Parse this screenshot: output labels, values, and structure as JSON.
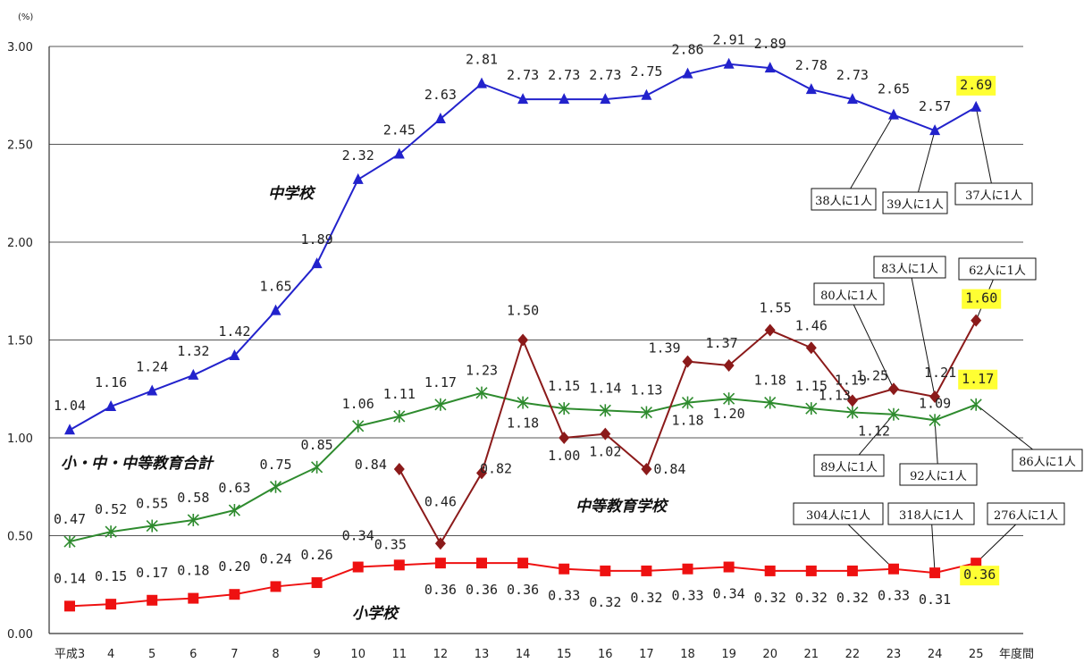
{
  "chart_data": {
    "type": "line",
    "y_unit": "(%)",
    "x_suffix": "年度間",
    "categories": [
      "平成3",
      "4",
      "5",
      "6",
      "7",
      "8",
      "9",
      "10",
      "11",
      "12",
      "13",
      "14",
      "15",
      "16",
      "17",
      "18",
      "19",
      "20",
      "21",
      "22",
      "23",
      "24",
      "25"
    ],
    "ylim": [
      0,
      3.0
    ],
    "yticks": [
      "0.00",
      "0.50",
      "1.00",
      "1.50",
      "2.00",
      "2.50",
      "3.00"
    ],
    "grid": true,
    "series": [
      {
        "name": "中学校",
        "color": "#2222cc",
        "marker": "triangle",
        "values": [
          1.04,
          1.16,
          1.24,
          1.32,
          1.42,
          1.65,
          1.89,
          2.32,
          2.45,
          2.63,
          2.81,
          2.73,
          2.73,
          2.73,
          2.75,
          2.86,
          2.91,
          2.89,
          2.78,
          2.73,
          2.65,
          2.57,
          2.69
        ],
        "labels": [
          "1.04",
          "1.16",
          "1.24",
          "1.32",
          "1.42",
          "1.65",
          "1.89",
          "2.32",
          "2.45",
          "2.63",
          "2.81",
          "2.73",
          "2.73",
          "2.73",
          "2.75",
          "2.86",
          "2.91",
          "2.89",
          "2.78",
          "2.73",
          "2.65",
          "2.57",
          "2.69"
        ]
      },
      {
        "name": "小・中・中等教育合計",
        "color": "#2e8b2e",
        "marker": "asterisk",
        "values": [
          0.47,
          0.52,
          0.55,
          0.58,
          0.63,
          0.75,
          0.85,
          1.06,
          1.11,
          1.17,
          1.23,
          1.18,
          1.15,
          1.14,
          1.13,
          1.18,
          1.2,
          1.18,
          1.15,
          1.13,
          1.12,
          1.09,
          1.17
        ],
        "labels": [
          "0.47",
          "0.52",
          "0.55",
          "0.58",
          "0.63",
          "0.75",
          "0.85",
          "1.06",
          "1.11",
          "1.17",
          "1.23",
          "1.18",
          "1.15",
          "1.14",
          "1.13",
          "1.18",
          "1.20",
          "1.18",
          "1.15",
          "1.13",
          "1.12",
          "1.09",
          "1.17"
        ]
      },
      {
        "name": "中等教育学校",
        "color": "#8b1a1a",
        "marker": "diamond",
        "values": [
          null,
          null,
          null,
          null,
          null,
          null,
          null,
          null,
          0.84,
          0.46,
          0.82,
          1.5,
          1.0,
          1.02,
          0.84,
          1.39,
          1.37,
          1.55,
          1.46,
          1.19,
          1.25,
          1.21,
          1.6
        ],
        "labels": [
          null,
          null,
          null,
          null,
          null,
          null,
          null,
          null,
          "0.84",
          "0.46",
          "0.82",
          "1.50",
          "1.00",
          "1.02",
          "0.84",
          "1.39",
          "1.37",
          "1.55",
          "1.46",
          "1.19",
          "1.25",
          "1.21",
          "1.60"
        ]
      },
      {
        "name": "小学校",
        "color": "#ee1111",
        "marker": "square",
        "values": [
          0.14,
          0.15,
          0.17,
          0.18,
          0.2,
          0.24,
          0.26,
          0.34,
          0.35,
          0.36,
          0.36,
          0.36,
          0.33,
          0.32,
          0.32,
          0.33,
          0.34,
          0.32,
          0.32,
          0.32,
          0.33,
          0.31,
          0.36
        ],
        "labels": [
          "0.14",
          "0.15",
          "0.17",
          "0.18",
          "0.20",
          "0.24",
          "0.26",
          "0.34",
          "0.35",
          "0.36",
          "0.36",
          "0.36",
          "0.33",
          "0.32",
          "0.32",
          "0.33",
          "0.34",
          "0.32",
          "0.32",
          "0.32",
          "0.33",
          "0.31",
          "0.36"
        ]
      }
    ],
    "callouts": [
      {
        "text": "38人に1人",
        "series": 0,
        "index": 20
      },
      {
        "text": "39人に1人",
        "series": 0,
        "index": 21
      },
      {
        "text": "37人に1人",
        "series": 0,
        "index": 22
      },
      {
        "text": "80人に1人",
        "series": 2,
        "index": 20
      },
      {
        "text": "83人に1人",
        "series": 2,
        "index": 21
      },
      {
        "text": "62人に1人",
        "series": 2,
        "index": 22
      },
      {
        "text": "89人に1人",
        "series": 1,
        "index": 20
      },
      {
        "text": "92人に1人",
        "series": 1,
        "index": 21
      },
      {
        "text": "86人に1人",
        "series": 1,
        "index": 22
      },
      {
        "text": "304人に1人",
        "series": 3,
        "index": 20
      },
      {
        "text": "318人に1人",
        "series": 3,
        "index": 21
      },
      {
        "text": "276人に1人",
        "series": 3,
        "index": 22
      }
    ],
    "highlight_color": "#ffff33"
  }
}
